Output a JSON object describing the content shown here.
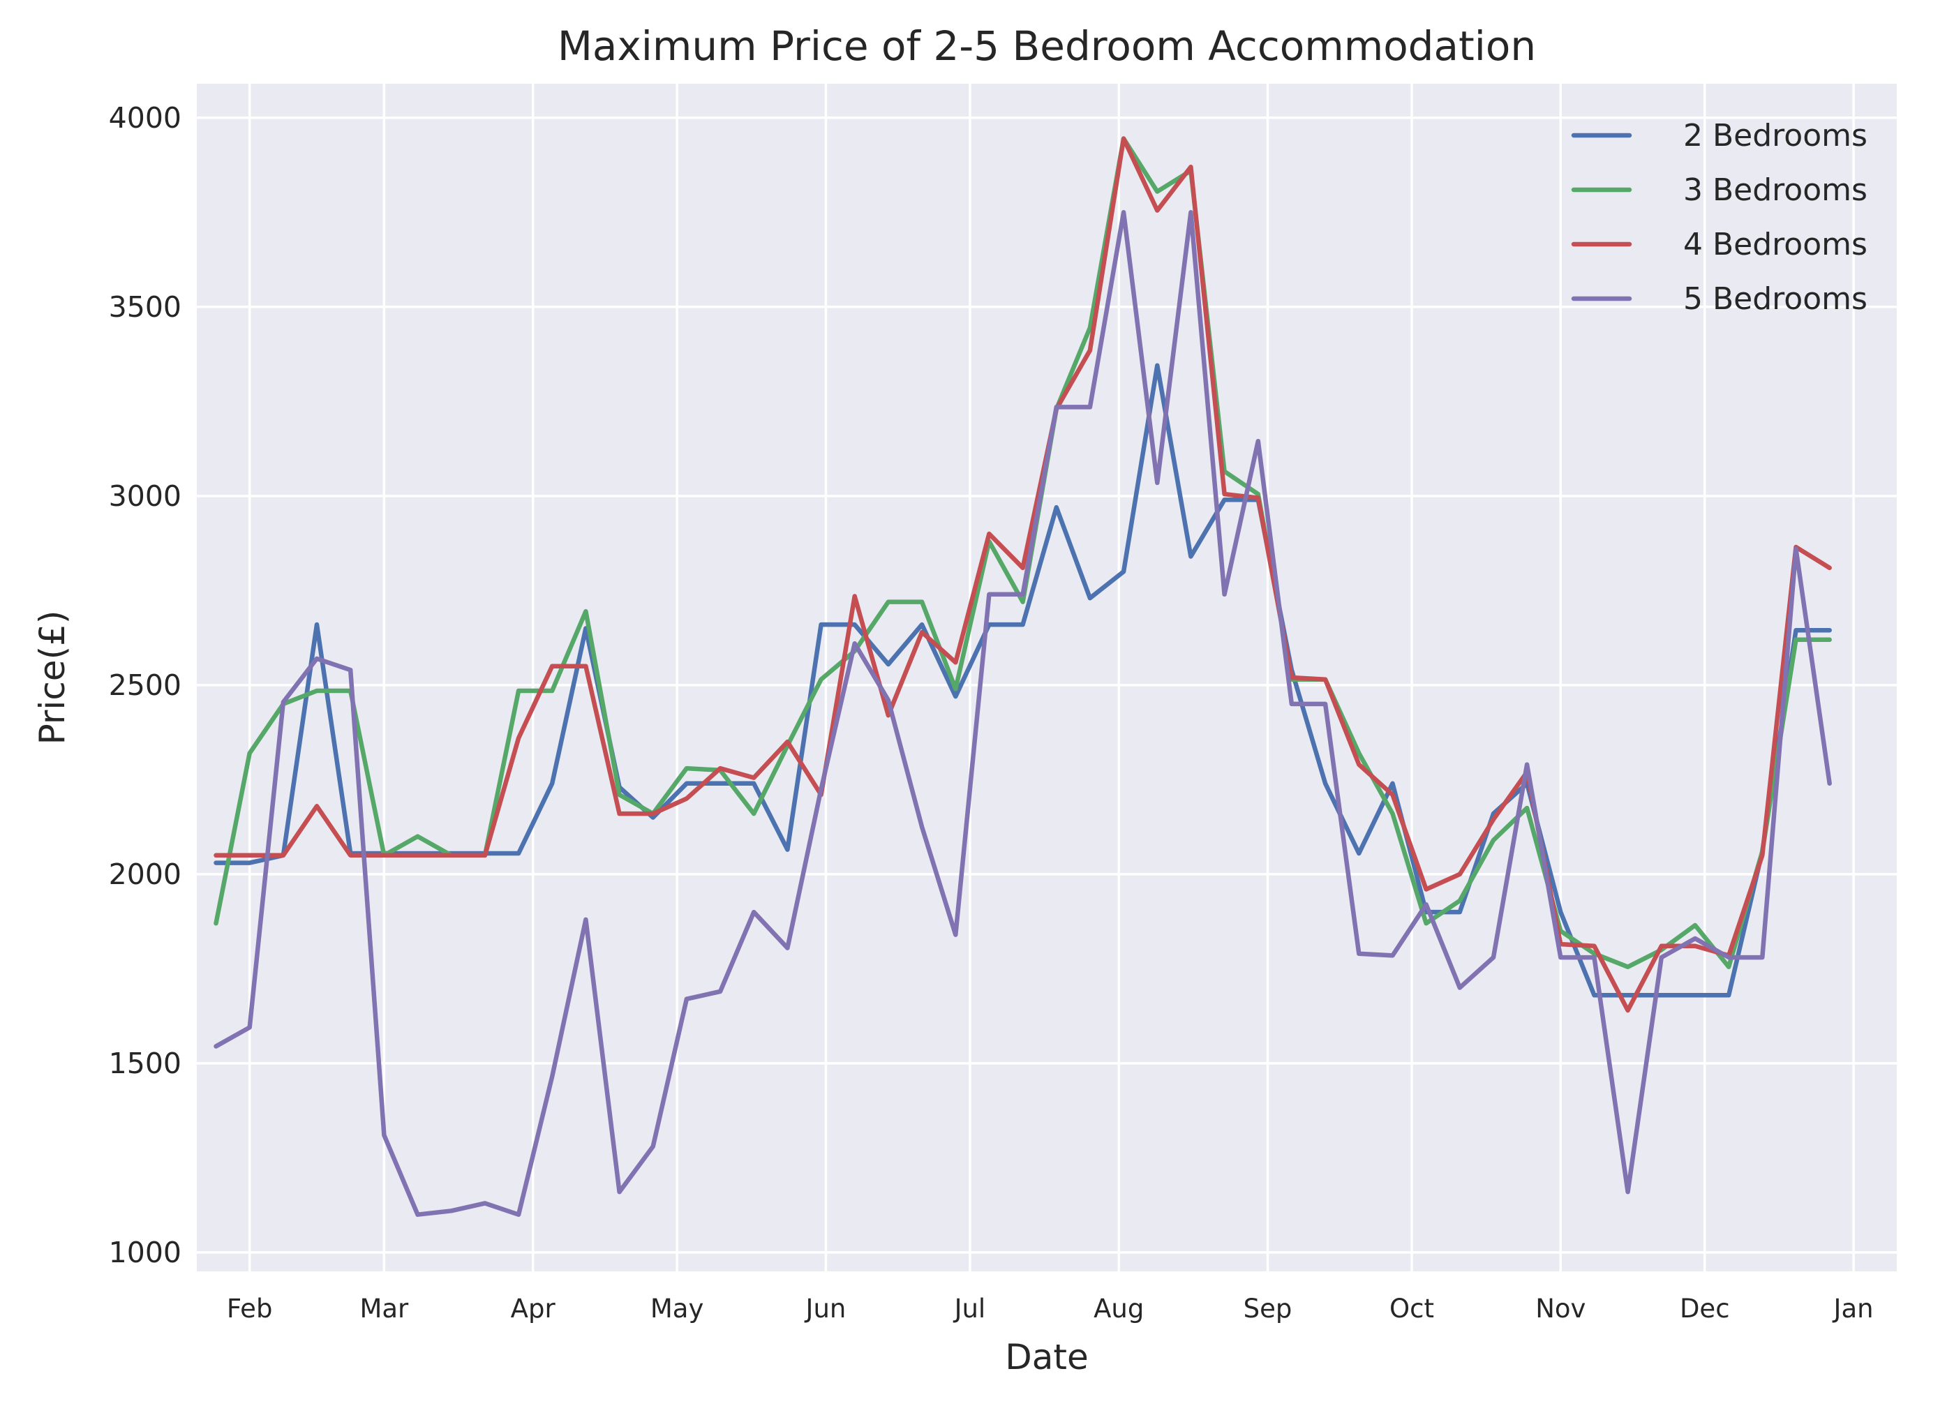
{
  "chart_data": {
    "type": "line",
    "title": "Maximum Price of 2-5 Bedroom Accommodation",
    "xlabel": "Date",
    "ylabel": "Price(£)",
    "ylim": [
      950,
      4090
    ],
    "yticks": [
      1000,
      1500,
      2000,
      2500,
      3000,
      3500,
      4000
    ],
    "xlim": [
      "2017-01-21",
      "2018-01-10"
    ],
    "xticks": [
      {
        "date": "2017-02-01",
        "label": "Feb"
      },
      {
        "date": "2017-03-01",
        "label": "Mar"
      },
      {
        "date": "2017-04-01",
        "label": "Apr"
      },
      {
        "date": "2017-05-01",
        "label": "May"
      },
      {
        "date": "2017-06-01",
        "label": "Jun"
      },
      {
        "date": "2017-07-01",
        "label": "Jul"
      },
      {
        "date": "2017-08-01",
        "label": "Aug"
      },
      {
        "date": "2017-09-01",
        "label": "Sep"
      },
      {
        "date": "2017-10-01",
        "label": "Oct"
      },
      {
        "date": "2017-11-01",
        "label": "Nov"
      },
      {
        "date": "2017-12-01",
        "label": "Dec"
      },
      {
        "date": "2018-01-01",
        "label": "Jan"
      }
    ],
    "grid": true,
    "legend_position": "top-right",
    "x": [
      "2017-01-25",
      "2017-02-01",
      "2017-02-08",
      "2017-02-15",
      "2017-02-22",
      "2017-03-01",
      "2017-03-08",
      "2017-03-15",
      "2017-03-22",
      "2017-03-29",
      "2017-04-05",
      "2017-04-12",
      "2017-04-19",
      "2017-04-26",
      "2017-05-03",
      "2017-05-10",
      "2017-05-17",
      "2017-05-24",
      "2017-05-31",
      "2017-06-07",
      "2017-06-14",
      "2017-06-21",
      "2017-06-28",
      "2017-07-05",
      "2017-07-12",
      "2017-07-19",
      "2017-07-26",
      "2017-08-02",
      "2017-08-09",
      "2017-08-16",
      "2017-08-23",
      "2017-08-30",
      "2017-09-06",
      "2017-09-13",
      "2017-09-20",
      "2017-09-27",
      "2017-10-04",
      "2017-10-11",
      "2017-10-18",
      "2017-10-25",
      "2017-11-01",
      "2017-11-08",
      "2017-11-15",
      "2017-11-22",
      "2017-11-29",
      "2017-12-06",
      "2017-12-13",
      "2017-12-20",
      "2017-12-27"
    ],
    "series": [
      {
        "name": "2 Bedrooms",
        "color": "#4c72b0",
        "values": [
          2030,
          2030,
          2050,
          2660,
          2055,
          2055,
          2055,
          2055,
          2055,
          2055,
          2240,
          2650,
          2230,
          2150,
          2240,
          2240,
          2240,
          2065,
          2660,
          2660,
          2555,
          2660,
          2470,
          2660,
          2660,
          2970,
          2730,
          2800,
          3345,
          2840,
          2990,
          2990,
          2540,
          2240,
          2055,
          2240,
          1900,
          1900,
          2160,
          2240,
          1900,
          1680,
          1680,
          1680,
          1680,
          1680,
          2060,
          2645,
          2645
        ]
      },
      {
        "name": "3 Bedrooms",
        "color": "#55a868",
        "values": [
          1870,
          2320,
          2450,
          2485,
          2485,
          2050,
          2100,
          2050,
          2050,
          2485,
          2485,
          2695,
          2210,
          2160,
          2280,
          2275,
          2160,
          2340,
          2515,
          2590,
          2720,
          2720,
          2490,
          2880,
          2720,
          3230,
          3445,
          3945,
          3805,
          3860,
          3065,
          3005,
          2515,
          2515,
          2320,
          2160,
          1870,
          1930,
          2090,
          2175,
          1850,
          1790,
          1755,
          1800,
          1865,
          1755,
          2060,
          2620,
          2620
        ]
      },
      {
        "name": "4 Bedrooms",
        "color": "#c44e52",
        "values": [
          2050,
          2050,
          2050,
          2180,
          2050,
          2050,
          2050,
          2050,
          2050,
          2360,
          2550,
          2550,
          2160,
          2160,
          2200,
          2280,
          2255,
          2350,
          2210,
          2735,
          2420,
          2640,
          2560,
          2900,
          2810,
          3230,
          3385,
          3945,
          3755,
          3870,
          3005,
          2995,
          2520,
          2515,
          2290,
          2210,
          1960,
          2000,
          2145,
          2270,
          1815,
          1810,
          1640,
          1810,
          1810,
          1785,
          2050,
          2865,
          2810
        ]
      },
      {
        "name": "5 Bedrooms",
        "color": "#8172b2",
        "values": [
          1545,
          1595,
          2455,
          2570,
          2540,
          1310,
          1100,
          1110,
          1130,
          1100,
          1465,
          1880,
          1160,
          1280,
          1670,
          1690,
          1900,
          1805,
          2225,
          2610,
          2460,
          2125,
          1840,
          2740,
          2740,
          3235,
          3235,
          3750,
          3035,
          3750,
          2740,
          3145,
          2450,
          2450,
          1790,
          1785,
          1920,
          1700,
          1780,
          2290,
          1780,
          1780,
          1160,
          1780,
          1830,
          1780,
          1780,
          2860,
          2240
        ]
      }
    ]
  }
}
